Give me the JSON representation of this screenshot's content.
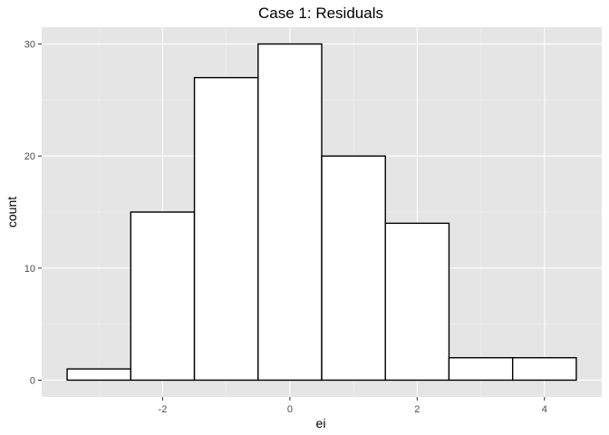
{
  "chart_data": {
    "type": "bar",
    "subtype": "histogram",
    "title": "Case 1: Residuals",
    "xlabel": "ei",
    "ylabel": "count",
    "bin_width": 1,
    "bins": [
      {
        "start": -3.5,
        "end": -2.5,
        "count": 1
      },
      {
        "start": -2.5,
        "end": -1.5,
        "count": 15
      },
      {
        "start": -1.5,
        "end": -0.5,
        "count": 27
      },
      {
        "start": -0.5,
        "end": 0.5,
        "count": 30
      },
      {
        "start": 0.5,
        "end": 1.5,
        "count": 20
      },
      {
        "start": 1.5,
        "end": 2.5,
        "count": 14
      },
      {
        "start": 2.5,
        "end": 3.5,
        "count": 2
      },
      {
        "start": 3.5,
        "end": 4.5,
        "count": 2
      }
    ],
    "xlim": [
      -3.9,
      4.9
    ],
    "ylim": [
      -1.5,
      31.5
    ],
    "x_ticks": [
      -2,
      0,
      2,
      4
    ],
    "x_tick_labels": [
      "-2",
      "0",
      "2",
      "4"
    ],
    "y_ticks": [
      0,
      10,
      20,
      30
    ],
    "y_tick_labels": [
      "0",
      "10",
      "20",
      "30"
    ],
    "grid": true,
    "legend": "none",
    "colors": {
      "panel_background": "#e5e5e5",
      "grid_major": "#ffffff",
      "grid_minor": "#f2f2f2",
      "bar_fill": "#ffffff",
      "bar_stroke": "#000000",
      "tick_color": "#333333",
      "tick_label_color": "#4d4d4d"
    }
  }
}
